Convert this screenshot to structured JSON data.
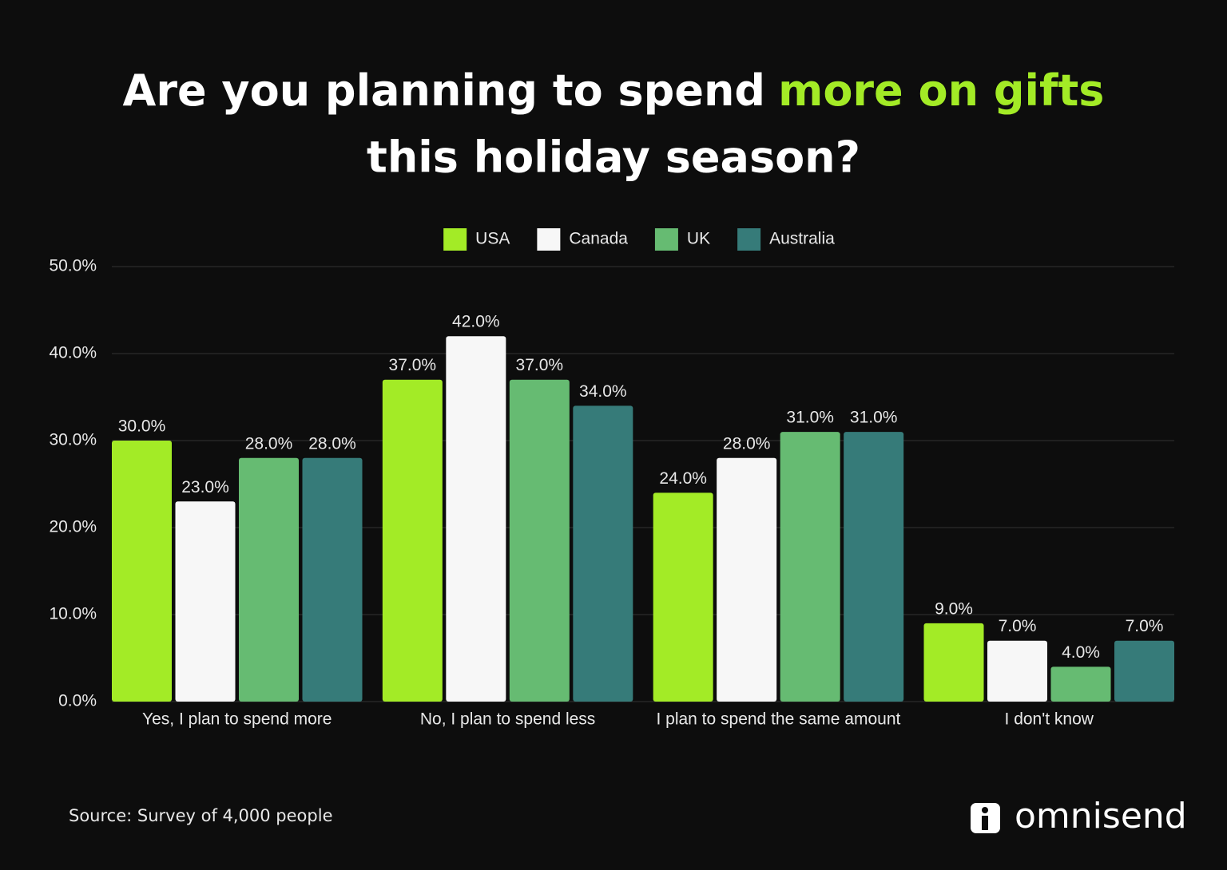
{
  "chart_data": {
    "type": "bar",
    "title": [
      "Are you planning to spend",
      "more on gifts",
      "this holiday season?"
    ],
    "title_color": "#ffffff",
    "title_highlight_color": "#a3eb26",
    "categories": [
      "Yes, I plan to spend more",
      "No, I plan to spend less",
      "I plan to spend the same amount",
      "I don't know"
    ],
    "series": [
      {
        "name": "USA",
        "color": "#a3eb26",
        "values": [
          30,
          37,
          24,
          9
        ],
        "value_labels": [
          "30.0%",
          "37.0%",
          "24.0%",
          "9.0%"
        ]
      },
      {
        "name": "Canada",
        "color": "#f7f7f7",
        "values": [
          23,
          42,
          28,
          7
        ],
        "value_labels": [
          "23.0%",
          "42.0%",
          "28.0%",
          "7.0%"
        ]
      },
      {
        "name": "UK",
        "color": "#66bb72",
        "values": [
          28,
          37,
          31,
          4
        ],
        "value_labels": [
          "28.0%",
          "37.0%",
          "31.0%",
          "4.0%"
        ]
      },
      {
        "name": "Australia",
        "color": "#367b79",
        "values": [
          28,
          34,
          31,
          7
        ],
        "value_labels": [
          "28.0%",
          "34.0%",
          "31.0%",
          "7.0%"
        ]
      }
    ],
    "ylim": [
      0,
      50
    ],
    "yticks": [
      {
        "value": 0,
        "label": "0.0%"
      },
      {
        "value": 10,
        "label": "10.0%"
      },
      {
        "value": 20,
        "label": "20.0%"
      },
      {
        "value": 30,
        "label": "30.0%"
      },
      {
        "value": 40,
        "label": "40.0%"
      },
      {
        "value": 50,
        "label": "50.0%"
      }
    ],
    "grid": true,
    "legend": "top",
    "source": "Source: Survey of 4,000 people",
    "brand": "omnisend"
  }
}
